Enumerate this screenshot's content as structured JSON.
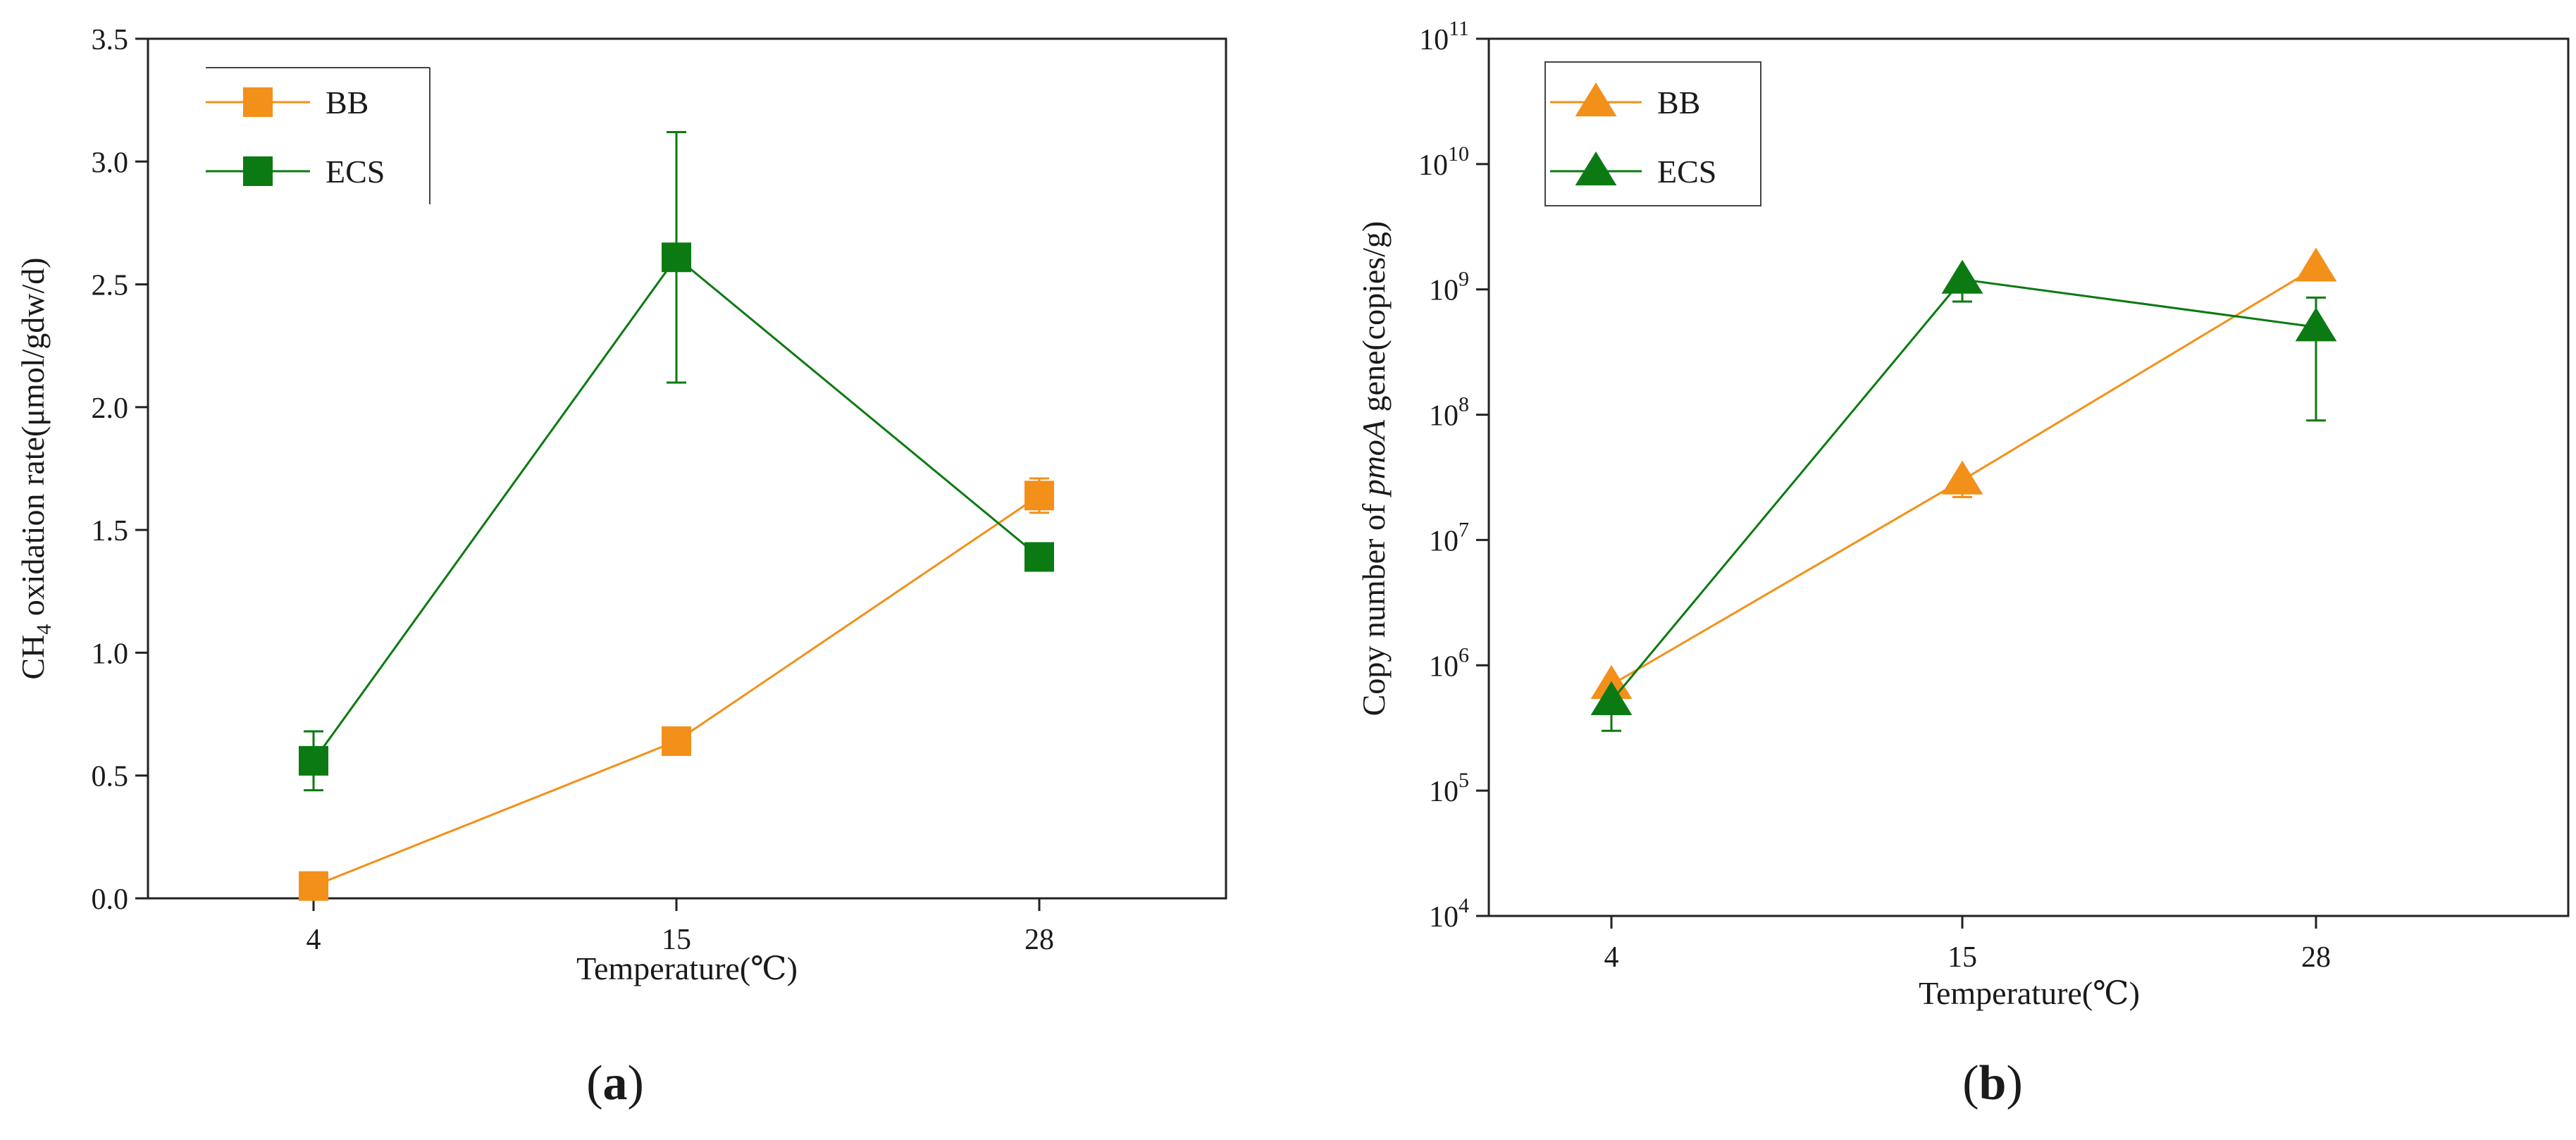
{
  "chart_data": [
    {
      "type": "line",
      "panel_label": {
        "open": "(",
        "letter": "a",
        "close": ")"
      },
      "xlabel": "Temperature(℃)",
      "ylabel": {
        "prefix": "CH",
        "sub": "4",
        "suffix": " oxidation rate(μmol/gdw/d)"
      },
      "categories": [
        "4",
        "15",
        "28"
      ],
      "ylim": [
        0,
        3.5
      ],
      "yticks": [
        "0.0",
        "0.5",
        "1.0",
        "1.5",
        "2.0",
        "2.5",
        "3.0",
        "3.5"
      ],
      "ytick_values": [
        0,
        0.5,
        1.0,
        1.5,
        2.0,
        2.5,
        3.0,
        3.5
      ],
      "marker": "square",
      "legend": "top-left",
      "series": [
        {
          "name": "BB",
          "color": "#f39019",
          "values": [
            0.05,
            0.64,
            1.64
          ],
          "error": [
            0.0,
            0.02,
            0.07
          ]
        },
        {
          "name": "ECS",
          "color": "#0b7a12",
          "values": [
            0.56,
            2.61,
            1.39
          ],
          "error": [
            0.12,
            0.51,
            0.0
          ]
        }
      ]
    },
    {
      "type": "line",
      "panel_label": {
        "open": "(",
        "letter": "b",
        "close": ")"
      },
      "xlabel": "Temperature(℃)",
      "ylabel": {
        "prefix": "Copy number of ",
        "italic": "pmoA",
        "suffix": " gene(copies/g)"
      },
      "categories": [
        "4",
        "15",
        "28"
      ],
      "yscale": "log",
      "ylim": [
        10000,
        100000000000
      ],
      "yticks": [
        {
          "base": "10",
          "exp": "4"
        },
        {
          "base": "10",
          "exp": "5"
        },
        {
          "base": "10",
          "exp": "6"
        },
        {
          "base": "10",
          "exp": "7"
        },
        {
          "base": "10",
          "exp": "8"
        },
        {
          "base": "10",
          "exp": "9"
        },
        {
          "base": "10",
          "exp": "10"
        },
        {
          "base": "10",
          "exp": "11"
        }
      ],
      "ytick_values": [
        10000,
        100000,
        1000000,
        10000000,
        100000000,
        1000000000,
        10000000000,
        100000000000
      ],
      "marker": "triangle",
      "legend": "top-left",
      "series": [
        {
          "name": "BB",
          "color": "#f39019",
          "values": [
            700000,
            30000000,
            1500000000
          ],
          "error_low": [
            null,
            22000000,
            null
          ],
          "error_high": [
            null,
            null,
            null
          ]
        },
        {
          "name": "ECS",
          "color": "#0b7a12",
          "values": [
            520000,
            1200000000,
            500000000
          ],
          "error_low": [
            300000,
            800000000,
            90000000
          ],
          "error_high": [
            null,
            null,
            860000000
          ]
        }
      ]
    }
  ]
}
